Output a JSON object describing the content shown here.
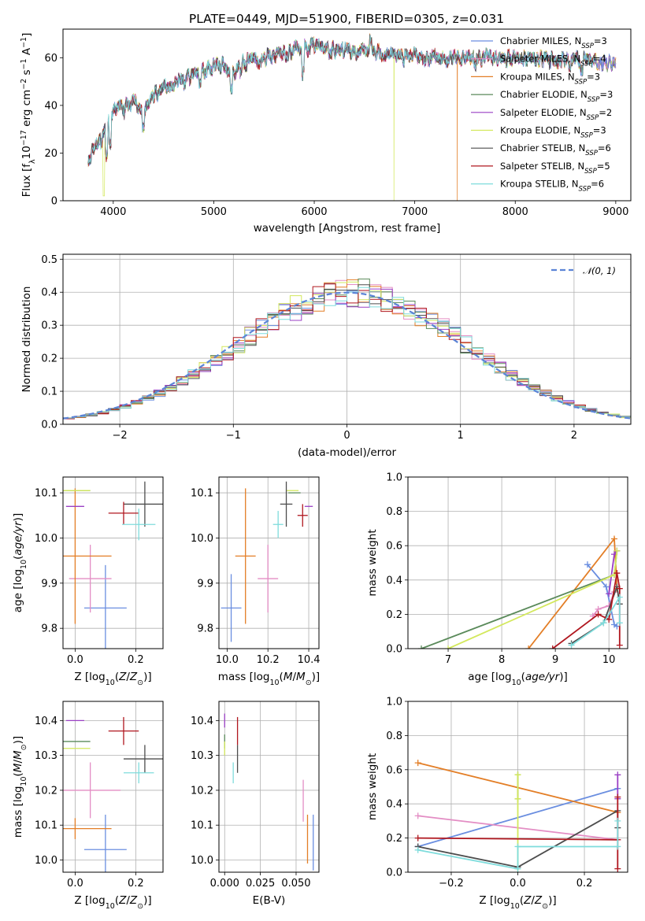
{
  "title": "PLATE=0449, MJD=51900, FIBERID=0305, z=0.031",
  "colors": {
    "Chabrier MILES": "#6a8ee0",
    "Salpeter MILES": "#e38dc4",
    "Kroupa MILES": "#e37e26",
    "Chabrier ELODIE": "#5a8a5a",
    "Salpeter ELODIE": "#9a3fc4",
    "Kroupa ELODIE": "#d3e85c",
    "Chabrier STELIB": "#4d4d4d",
    "Salpeter STELIB": "#b0171f",
    "Kroupa STELIB": "#7fdcdc"
  },
  "chart_data": [
    {
      "type": "line",
      "panel": "spectrum",
      "xlabel": "wavelength [Angstrom, rest frame]",
      "ylabel": "Flux [f_λ10^-17 erg cm^-2 s^-1 A^-1]",
      "xlim": [
        3500,
        9150
      ],
      "ylim": [
        0,
        72
      ],
      "xticks": [
        "4000",
        "5000",
        "6000",
        "7000",
        "8000",
        "9000"
      ],
      "yticks": [
        "0",
        "20",
        "40",
        "60"
      ],
      "grid": false,
      "legend_position": "top-right",
      "continuum_points": [
        [
          3750,
          18
        ],
        [
          3900,
          27
        ],
        [
          4000,
          37
        ],
        [
          4100,
          40
        ],
        [
          4200,
          42
        ],
        [
          4300,
          38
        ],
        [
          4400,
          44
        ],
        [
          4500,
          48
        ],
        [
          4600,
          50
        ],
        [
          4700,
          50
        ],
        [
          4800,
          53
        ],
        [
          4900,
          55
        ],
        [
          5000,
          56
        ],
        [
          5100,
          57
        ],
        [
          5200,
          54
        ],
        [
          5300,
          58
        ],
        [
          5400,
          58
        ],
        [
          5500,
          60
        ],
        [
          5600,
          61
        ],
        [
          5700,
          62
        ],
        [
          5800,
          63
        ],
        [
          5900,
          64
        ],
        [
          6000,
          65
        ],
        [
          6100,
          64
        ],
        [
          6200,
          63
        ],
        [
          6300,
          63
        ],
        [
          6400,
          62
        ],
        [
          6500,
          63
        ],
        [
          6600,
          62
        ],
        [
          6700,
          62
        ],
        [
          6800,
          61
        ],
        [
          6900,
          60
        ],
        [
          7000,
          61
        ],
        [
          7100,
          60
        ],
        [
          7200,
          60
        ],
        [
          7300,
          60
        ],
        [
          7400,
          60
        ],
        [
          7500,
          60
        ],
        [
          7700,
          60
        ],
        [
          7900,
          60
        ],
        [
          8100,
          60
        ],
        [
          8300,
          59
        ],
        [
          8500,
          59
        ],
        [
          8700,
          59
        ],
        [
          8900,
          58
        ],
        [
          9000,
          58
        ]
      ],
      "series": [
        {
          "name": "Chabrier MILES, N_SSP=3",
          "label_main": "Chabrier MILES, N",
          "label_sub": "SSP",
          "label_tail": "=3"
        },
        {
          "name": "Salpeter MILES, N_SSP=4",
          "label_main": "Salpeter MILES, N",
          "label_sub": "SSP",
          "label_tail": "=4"
        },
        {
          "name": "Kroupa MILES, N_SSP=3",
          "label_main": "Kroupa MILES, N",
          "label_sub": "SSP",
          "label_tail": "=3",
          "dropout_x": 7420
        },
        {
          "name": "Chabrier ELODIE, N_SSP=3",
          "label_main": "Chabrier ELODIE, N",
          "label_sub": "SSP",
          "label_tail": "=3"
        },
        {
          "name": "Salpeter ELODIE, N_SSP=2",
          "label_main": "Salpeter ELODIE, N",
          "label_sub": "SSP",
          "label_tail": "=2"
        },
        {
          "name": "Kroupa ELODIE, N_SSP=3",
          "label_main": "Kroupa ELODIE, N",
          "label_sub": "SSP",
          "label_tail": "=3",
          "dropout_x": 6790
        },
        {
          "name": "Chabrier STELIB, N_SSP=6",
          "label_main": "Chabrier STELIB, N",
          "label_sub": "SSP",
          "label_tail": "=6"
        },
        {
          "name": "Salpeter STELIB, N_SSP=5",
          "label_main": "Salpeter STELIB, N",
          "label_sub": "SSP",
          "label_tail": "=5"
        },
        {
          "name": "Kroupa STELIB, N_SSP=6",
          "label_main": "Kroupa STELIB, N",
          "label_sub": "SSP",
          "label_tail": "=6"
        }
      ]
    },
    {
      "type": "histogram",
      "panel": "residuals",
      "xlabel": "(data-model)/error",
      "ylabel": "Normed distribution",
      "xlim": [
        -2.5,
        2.5
      ],
      "ylim": [
        0,
        0.515
      ],
      "xticks": [
        "−2",
        "−1",
        "0",
        "1",
        "2"
      ],
      "yticks": [
        "0.0",
        "0.1",
        "0.2",
        "0.3",
        "0.4",
        "0.5"
      ],
      "grid": true,
      "bin_width": 0.1,
      "reference_curve": {
        "name": "N(0,1)",
        "label": "𝒩(0, 1)",
        "mean": 0,
        "sigma": 1,
        "color": "#5b84d6",
        "style": "dashed"
      },
      "legend_position": "top-right"
    },
    {
      "type": "errorbar",
      "panel": "age-vs-Z",
      "xlabel": "Z [log10(Z/Z⊙)]",
      "ylabel": "age [log10(age/yr)]",
      "xlim": [
        -0.04,
        0.29
      ],
      "ylim": [
        9.755,
        10.135
      ],
      "xticks": [
        "0.0",
        "0.2"
      ],
      "yticks": [
        "9.8",
        "9.9",
        "10.0",
        "10.1"
      ],
      "grid": true
    },
    {
      "type": "errorbar",
      "panel": "age-vs-mass",
      "xlabel": "mass [log10(M/M⊙)]",
      "ylabel": "",
      "xlim": [
        9.96,
        10.45
      ],
      "ylim": [
        9.755,
        10.135
      ],
      "xticks": [
        "10.0",
        "10.2",
        "10.4"
      ],
      "yticks": [
        "9.8",
        "9.9",
        "10.0",
        "10.1"
      ],
      "grid": true
    },
    {
      "type": "line",
      "panel": "mass-weight-vs-age",
      "xlabel": "age [log10(age/yr)]",
      "ylabel": "mass weight",
      "xlim": [
        6.25,
        10.35
      ],
      "ylim": [
        0,
        1.0
      ],
      "xticks": [
        "7",
        "8",
        "9",
        "10"
      ],
      "yticks": [
        "0.0",
        "0.2",
        "0.4",
        "0.6",
        "0.8",
        "1.0"
      ],
      "grid": true,
      "series": [
        {
          "name": "Chabrier MILES",
          "points": [
            [
              9.6,
              0.49
            ],
            [
              9.95,
              0.36
            ],
            [
              10.1,
              0.14
            ],
            [
              10.15,
              0.13
            ]
          ]
        },
        {
          "name": "Salpeter MILES",
          "points": [
            [
              9.7,
              0.19
            ],
            [
              9.8,
              0.23
            ],
            [
              10.0,
              0.25
            ],
            [
              10.1,
              0.33
            ]
          ]
        },
        {
          "name": "Kroupa MILES",
          "points": [
            [
              8.5,
              0.0
            ],
            [
              10.1,
              0.64
            ],
            [
              10.15,
              0.35
            ]
          ]
        },
        {
          "name": "Chabrier ELODIE",
          "points": [
            [
              6.5,
              0.0
            ],
            [
              10.1,
              0.43
            ],
            [
              10.15,
              0.57
            ]
          ]
        },
        {
          "name": "Salpeter ELODIE",
          "points": [
            [
              10.0,
              0.32
            ],
            [
              10.1,
              0.55
            ],
            [
              10.15,
              0.57
            ]
          ]
        },
        {
          "name": "Kroupa ELODIE",
          "points": [
            [
              7.0,
              0.0
            ],
            [
              10.1,
              0.43
            ],
            [
              10.15,
              0.57
            ]
          ]
        },
        {
          "name": "Chabrier STELIB",
          "points": [
            [
              9.3,
              0.03
            ],
            [
              9.9,
              0.15
            ],
            [
              10.15,
              0.36
            ],
            [
              10.2,
              0.26
            ]
          ]
        },
        {
          "name": "Salpeter STELIB",
          "points": [
            [
              8.95,
              0.0
            ],
            [
              9.8,
              0.2
            ],
            [
              10.0,
              0.17
            ],
            [
              10.15,
              0.44
            ],
            [
              10.2,
              0.35
            ],
            [
              10.2,
              0.02
            ]
          ]
        },
        {
          "name": "Kroupa STELIB",
          "points": [
            [
              9.3,
              0.02
            ],
            [
              9.9,
              0.15
            ],
            [
              10.2,
              0.3
            ],
            [
              10.2,
              0.15
            ]
          ]
        }
      ]
    },
    {
      "type": "errorbar",
      "panel": "mass-vs-Z",
      "xlabel": "Z [log10(Z/Z⊙)]",
      "ylabel": "mass [log10(M/M⊙)]",
      "xlim": [
        -0.04,
        0.29
      ],
      "ylim": [
        9.965,
        10.455
      ],
      "xticks": [
        "0.0",
        "0.2"
      ],
      "yticks": [
        "10.0",
        "10.1",
        "10.2",
        "10.3",
        "10.4"
      ],
      "grid": true
    },
    {
      "type": "errorbar",
      "panel": "mass-vs-EBV",
      "xlabel": "E(B-V)",
      "ylabel": "",
      "xlim": [
        -0.004,
        0.066
      ],
      "ylim": [
        9.965,
        10.455
      ],
      "xticks": [
        "0.000",
        "0.025",
        "0.050"
      ],
      "yticks": [
        "10.0",
        "10.1",
        "10.2",
        "10.3",
        "10.4"
      ],
      "grid": true
    },
    {
      "type": "line",
      "panel": "mass-weight-vs-Z",
      "xlabel": "Z [log10(Z/Z⊙)]",
      "ylabel": "mass weight",
      "xlim": [
        -0.33,
        0.33
      ],
      "ylim": [
        0,
        1.0
      ],
      "xticks": [
        "−0.2",
        "0.0",
        "0.2"
      ],
      "yticks": [
        "0.0",
        "0.2",
        "0.4",
        "0.6",
        "0.8",
        "1.0"
      ],
      "grid": true,
      "series": [
        {
          "name": "Chabrier MILES",
          "points": [
            [
              -0.3,
              0.15
            ],
            [
              0.3,
              0.49
            ]
          ]
        },
        {
          "name": "Salpeter MILES",
          "points": [
            [
              -0.3,
              0.33
            ],
            [
              0.3,
              0.19
            ]
          ]
        },
        {
          "name": "Kroupa MILES",
          "points": [
            [
              -0.3,
              0.64
            ],
            [
              0.3,
              0.35
            ]
          ]
        },
        {
          "name": "Chabrier ELODIE",
          "points": [
            [
              0.0,
              0.57
            ],
            [
              0.0,
              0.43
            ]
          ]
        },
        {
          "name": "Salpeter ELODIE",
          "points": [
            [
              0.3,
              0.57
            ],
            [
              0.3,
              0.43
            ]
          ]
        },
        {
          "name": "Kroupa ELODIE",
          "points": [
            [
              0.0,
              0.57
            ],
            [
              0.0,
              0.43
            ],
            [
              0.0,
              0.02
            ]
          ]
        },
        {
          "name": "Chabrier STELIB",
          "points": [
            [
              -0.3,
              0.15
            ],
            [
              0.0,
              0.03
            ],
            [
              0.3,
              0.36
            ],
            [
              0.3,
              0.26
            ]
          ]
        },
        {
          "name": "Salpeter STELIB",
          "points": [
            [
              -0.3,
              0.2
            ],
            [
              0.3,
              0.19
            ],
            [
              0.3,
              0.44
            ],
            [
              0.3,
              0.02
            ]
          ]
        },
        {
          "name": "Kroupa STELIB",
          "points": [
            [
              -0.3,
              0.13
            ],
            [
              0.0,
              0.02
            ],
            [
              0.0,
              0.15
            ],
            [
              0.3,
              0.15
            ],
            [
              0.3,
              0.3
            ]
          ]
        }
      ]
    }
  ],
  "fit_points": {
    "age_vs_Z": [
      {
        "name": "Chabrier MILES",
        "x": 0.1,
        "y": 9.845,
        "xerr": 0.07,
        "yerr": 0.095
      },
      {
        "name": "Salpeter MILES",
        "x": 0.05,
        "y": 9.91,
        "xerr": 0.07,
        "yerr": 0.075
      },
      {
        "name": "Kroupa MILES",
        "x": 0.0,
        "y": 9.96,
        "xerr": 0.12,
        "yerr": 0.15
      },
      {
        "name": "Chabrier ELODIE",
        "x": 0.0,
        "y": 10.105,
        "xerr": 0.05,
        "yerr": 0.0
      },
      {
        "name": "Salpeter ELODIE",
        "x": 0.0,
        "y": 10.07,
        "xerr": 0.03,
        "yerr": 0.0
      },
      {
        "name": "Kroupa ELODIE",
        "x": 0.0,
        "y": 10.105,
        "xerr": 0.05,
        "yerr": 0.0
      },
      {
        "name": "Chabrier STELIB",
        "x": 0.23,
        "y": 10.075,
        "xerr": 0.07,
        "yerr": 0.05
      },
      {
        "name": "Salpeter STELIB",
        "x": 0.16,
        "y": 10.055,
        "xerr": 0.05,
        "yerr": 0.025
      },
      {
        "name": "Kroupa STELIB",
        "x": 0.21,
        "y": 10.03,
        "xerr": 0.055,
        "yerr": 0.035
      }
    ],
    "age_vs_mass": [
      {
        "name": "Chabrier MILES",
        "x": 10.02,
        "y": 9.845,
        "xerr": 0.05,
        "yerr": 0.075
      },
      {
        "name": "Salpeter MILES",
        "x": 10.2,
        "y": 9.91,
        "xerr": 0.05,
        "yerr": 0.075
      },
      {
        "name": "Kroupa MILES",
        "x": 10.09,
        "y": 9.96,
        "xerr": 0.05,
        "yerr": 0.15
      },
      {
        "name": "Chabrier ELODIE",
        "x": 10.33,
        "y": 10.1,
        "xerr": 0.03,
        "yerr": 0.0
      },
      {
        "name": "Salpeter ELODIE",
        "x": 10.4,
        "y": 10.07,
        "xerr": 0.02,
        "yerr": 0.0
      },
      {
        "name": "Kroupa ELODIE",
        "x": 10.32,
        "y": 10.105,
        "xerr": 0.03,
        "yerr": 0.0
      },
      {
        "name": "Chabrier STELIB",
        "x": 10.29,
        "y": 10.075,
        "xerr": 0.03,
        "yerr": 0.05
      },
      {
        "name": "Salpeter STELIB",
        "x": 10.37,
        "y": 10.05,
        "xerr": 0.025,
        "yerr": 0.025
      },
      {
        "name": "Kroupa STELIB",
        "x": 10.25,
        "y": 10.03,
        "xerr": 0.025,
        "yerr": 0.03
      }
    ],
    "mass_vs_Z": [
      {
        "name": "Chabrier MILES",
        "x": 0.1,
        "y": 10.03,
        "xerr": 0.07,
        "yerr": 0.1
      },
      {
        "name": "Salpeter MILES",
        "x": 0.05,
        "y": 10.2,
        "xerr": 0.1,
        "yerr": 0.08
      },
      {
        "name": "Kroupa MILES",
        "x": 0.0,
        "y": 10.09,
        "xerr": 0.12,
        "yerr": 0.03
      },
      {
        "name": "Chabrier ELODIE",
        "x": 0.0,
        "y": 10.34,
        "xerr": 0.05,
        "yerr": 0.0
      },
      {
        "name": "Salpeter ELODIE",
        "x": 0.0,
        "y": 10.4,
        "xerr": 0.03,
        "yerr": 0.0
      },
      {
        "name": "Kroupa ELODIE",
        "x": 0.0,
        "y": 10.32,
        "xerr": 0.05,
        "yerr": 0.0
      },
      {
        "name": "Chabrier STELIB",
        "x": 0.23,
        "y": 10.29,
        "xerr": 0.07,
        "yerr": 0.04
      },
      {
        "name": "Salpeter STELIB",
        "x": 0.16,
        "y": 10.37,
        "xerr": 0.05,
        "yerr": 0.04
      },
      {
        "name": "Kroupa STELIB",
        "x": 0.21,
        "y": 10.25,
        "xerr": 0.05,
        "yerr": 0.03
      }
    ],
    "mass_vs_EBV": [
      {
        "name": "Chabrier MILES",
        "x": 0.062,
        "y": 10.05,
        "xerr": 0.0,
        "yerr": 0.08
      },
      {
        "name": "Salpeter MILES",
        "x": 0.055,
        "y": 10.17,
        "xerr": 0.0,
        "yerr": 0.06
      },
      {
        "name": "Kroupa MILES",
        "x": 0.058,
        "y": 10.06,
        "xerr": 0.0,
        "yerr": 0.07
      },
      {
        "name": "Chabrier ELODIE",
        "x": 0.0,
        "y": 10.34,
        "xerr": 0.0,
        "yerr": 0.02
      },
      {
        "name": "Salpeter ELODIE",
        "x": 0.0,
        "y": 10.4,
        "xerr": 0.0,
        "yerr": 0.02
      },
      {
        "name": "Kroupa ELODIE",
        "x": 0.0,
        "y": 10.32,
        "xerr": 0.0,
        "yerr": 0.02
      },
      {
        "name": "Chabrier STELIB",
        "x": 0.009,
        "y": 10.29,
        "xerr": 0.0,
        "yerr": 0.04
      },
      {
        "name": "Salpeter STELIB",
        "x": 0.009,
        "y": 10.37,
        "xerr": 0.0,
        "yerr": 0.04
      },
      {
        "name": "Kroupa STELIB",
        "x": 0.006,
        "y": 10.25,
        "xerr": 0.0,
        "yerr": 0.03
      }
    ]
  }
}
